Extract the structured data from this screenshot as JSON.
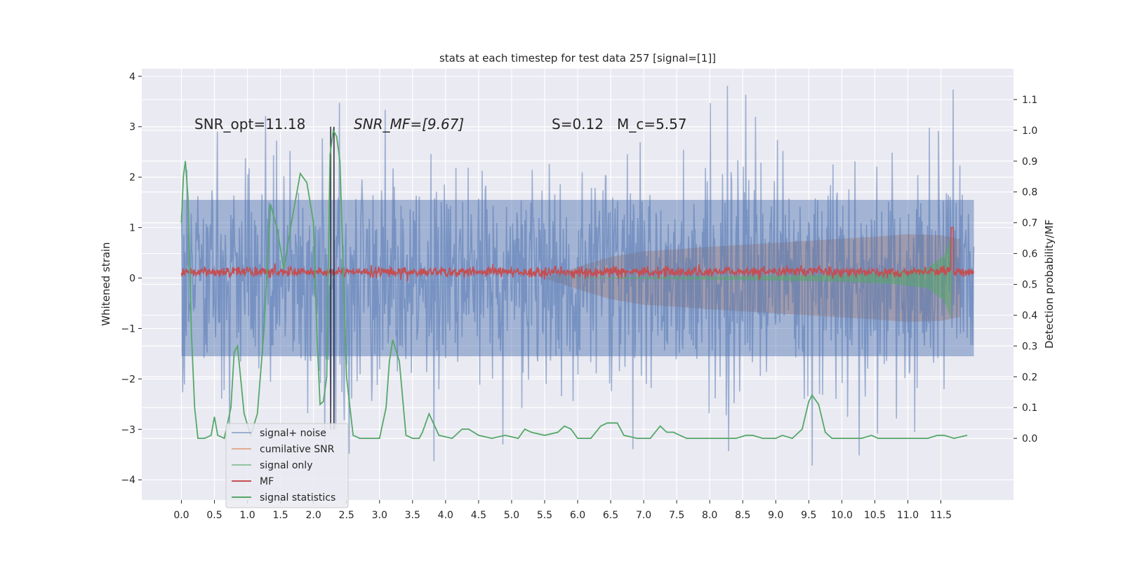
{
  "chart_data": {
    "type": "line",
    "title": "stats at each timestep for test data 257 [signal=[1]]",
    "xlabel": "",
    "ylabel": "Whitened strain",
    "y2label": "Detection probability/MF",
    "xlim": [
      -0.6,
      12.6
    ],
    "ylim": [
      -4.4,
      4.15
    ],
    "y2lim": [
      -0.2,
      1.2
    ],
    "x_ticks": [
      0.0,
      0.5,
      1.0,
      1.5,
      2.0,
      2.5,
      3.0,
      3.5,
      4.0,
      4.5,
      5.0,
      5.5,
      6.0,
      6.5,
      7.0,
      7.5,
      8.0,
      8.5,
      9.0,
      9.5,
      10.0,
      10.5,
      11.0,
      11.5
    ],
    "x_tick_labels": [
      "0.0",
      "0.5",
      "1.0",
      "1.5",
      "2.0",
      "2.5",
      "3.0",
      "3.5",
      "4.0",
      "4.5",
      "5.0",
      "5.5",
      "6.0",
      "6.5",
      "7.0",
      "7.5",
      "8.0",
      "8.5",
      "9.0",
      "9.5",
      "10.0",
      "10.5",
      "11.0",
      "11.5"
    ],
    "y_ticks": [
      4,
      3,
      2,
      1,
      0,
      -1,
      -2,
      -3,
      -4
    ],
    "y_tick_labels": [
      "4",
      "3",
      "2",
      "1",
      "0",
      "−1",
      "−2",
      "−3",
      "−4"
    ],
    "y2_ticks": [
      1.1,
      1.0,
      0.9,
      0.8,
      0.7,
      0.6,
      0.5,
      0.4,
      0.3,
      0.2,
      0.1,
      0.0
    ],
    "y2_tick_labels": [
      "1.1",
      "1.0",
      "0.9",
      "0.8",
      "0.7",
      "0.6",
      "0.5",
      "0.4",
      "0.3",
      "0.2",
      "0.1",
      "0.0"
    ],
    "grid": true,
    "legend_position": "lower-left",
    "annotations": [
      {
        "id": "snr-opt",
        "text": "SNR_opt=11.18",
        "x": 0.2,
        "y": 3.0
      },
      {
        "id": "snr-mf",
        "text": "SNR_MF=[9.67]",
        "x": 2.6,
        "y": 3.0
      },
      {
        "id": "s-mc",
        "text": "S=0.12   M_c=5.57",
        "x": 5.6,
        "y": 3.0
      }
    ],
    "vlines": [
      {
        "x": 2.26,
        "ymin": -3.0,
        "ymax": 3.0
      },
      {
        "x": 2.31,
        "ymin": -3.0,
        "ymax": 3.0
      }
    ],
    "series": [
      {
        "name": "signal+ noise",
        "axis": "left",
        "style": "noise",
        "x_range": [
          0.0,
          12.0
        ],
        "typical_amplitude": 1.7,
        "max_value": 3.85,
        "min_value": -3.85,
        "color": "#4c72b0"
      },
      {
        "name": "cumilative SNR",
        "axis": "left",
        "style": "envelope",
        "x": [
          5.5,
          6.0,
          6.5,
          7.0,
          7.5,
          8.0,
          9.0,
          10.0,
          10.5,
          11.0,
          11.5,
          11.8
        ],
        "upper": [
          0.0,
          0.22,
          0.42,
          0.53,
          0.57,
          0.62,
          0.7,
          0.78,
          0.82,
          0.87,
          0.85,
          0.77
        ],
        "lower": [
          0.0,
          -0.22,
          -0.42,
          -0.53,
          -0.57,
          -0.62,
          -0.7,
          -0.78,
          -0.82,
          -0.87,
          -0.85,
          -0.77
        ],
        "color": "#dd8452"
      },
      {
        "name": "signal only",
        "axis": "left",
        "style": "chirp",
        "x": [
          5.5,
          7.0,
          8.5,
          10.0,
          10.8,
          11.3,
          11.55,
          11.65,
          11.67
        ],
        "amplitude": [
          0.0,
          0.02,
          0.04,
          0.07,
          0.12,
          0.2,
          0.45,
          0.8,
          0.0
        ],
        "color": "#55a868"
      },
      {
        "name": "MF",
        "axis": "left",
        "style": "noise-band",
        "x_range": [
          0.0,
          12.0
        ],
        "center": 0.12,
        "amplitude": 0.1,
        "spike": {
          "x": 11.67,
          "y": 1.0
        },
        "color": "#c44e52"
      },
      {
        "name": "signal statistics",
        "axis": "right",
        "x": [
          0.0,
          0.03,
          0.06,
          0.1,
          0.15,
          0.2,
          0.25,
          0.35,
          0.45,
          0.5,
          0.55,
          0.65,
          0.75,
          0.8,
          0.85,
          0.95,
          1.05,
          1.15,
          1.25,
          1.35,
          1.45,
          1.55,
          1.65,
          1.8,
          1.9,
          2.0,
          2.05,
          2.1,
          2.15,
          2.2,
          2.25,
          2.3,
          2.35,
          2.4,
          2.5,
          2.6,
          2.7,
          2.8,
          3.0,
          3.1,
          3.15,
          3.2,
          3.3,
          3.4,
          3.5,
          3.6,
          3.65,
          3.75,
          3.9,
          4.1,
          4.25,
          4.35,
          4.5,
          4.7,
          4.9,
          5.1,
          5.2,
          5.3,
          5.5,
          5.7,
          5.8,
          5.9,
          6.0,
          6.2,
          6.35,
          6.45,
          6.6,
          6.7,
          6.9,
          7.1,
          7.25,
          7.35,
          7.45,
          7.55,
          7.65,
          7.8,
          8.0,
          8.4,
          8.55,
          8.65,
          8.8,
          9.0,
          9.1,
          9.25,
          9.4,
          9.5,
          9.55,
          9.65,
          9.75,
          9.85,
          10.0,
          10.3,
          10.45,
          10.55,
          10.7,
          10.9,
          11.1,
          11.3,
          11.45,
          11.55,
          11.7,
          11.9
        ],
        "values": [
          0.7,
          0.85,
          0.9,
          0.78,
          0.35,
          0.1,
          0.0,
          0.0,
          0.01,
          0.07,
          0.01,
          0.0,
          0.1,
          0.28,
          0.3,
          0.08,
          0.01,
          0.08,
          0.35,
          0.76,
          0.68,
          0.55,
          0.68,
          0.86,
          0.83,
          0.7,
          0.35,
          0.11,
          0.12,
          0.2,
          0.92,
          1.0,
          0.98,
          0.9,
          0.2,
          0.01,
          0.0,
          0.0,
          0.0,
          0.1,
          0.25,
          0.32,
          0.25,
          0.01,
          0.0,
          0.0,
          0.02,
          0.08,
          0.01,
          0.0,
          0.03,
          0.03,
          0.01,
          0.0,
          0.01,
          0.0,
          0.03,
          0.02,
          0.01,
          0.02,
          0.04,
          0.03,
          0.0,
          0.0,
          0.04,
          0.05,
          0.05,
          0.01,
          0.0,
          0.0,
          0.04,
          0.02,
          0.02,
          0.01,
          0.0,
          0.0,
          0.0,
          0.0,
          0.01,
          0.01,
          0.0,
          0.0,
          0.01,
          0.0,
          0.03,
          0.12,
          0.14,
          0.11,
          0.02,
          0.0,
          0.0,
          0.0,
          0.01,
          0.0,
          0.0,
          0.0,
          0.0,
          0.0,
          0.01,
          0.01,
          0.0,
          0.01
        ],
        "color": "#55a868"
      }
    ]
  }
}
